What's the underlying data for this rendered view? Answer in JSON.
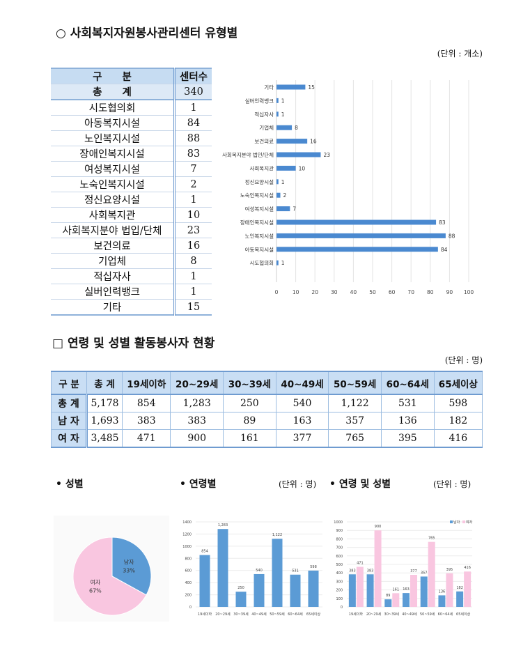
{
  "section1": {
    "title": "○ 사회복지자원봉사관리센터 유형별",
    "unit": "(단위 : 개소)",
    "table": {
      "headers": [
        "구　　분",
        "센터수"
      ],
      "total": [
        "총　　계",
        "340"
      ],
      "rows": [
        [
          "시도협의회",
          "1"
        ],
        [
          "아동복지시설",
          "84"
        ],
        [
          "노인복지시설",
          "88"
        ],
        [
          "장애인복지시설",
          "83"
        ],
        [
          "여성복지시설",
          "7"
        ],
        [
          "노숙인복지시설",
          "2"
        ],
        [
          "정신요양시설",
          "1"
        ],
        [
          "사회복지관",
          "10"
        ],
        [
          "사회복지분야 법입/단체",
          "23"
        ],
        [
          "보건의료",
          "16"
        ],
        [
          "기업체",
          "8"
        ],
        [
          "적십자사",
          "1"
        ],
        [
          "실버인력뱅크",
          "1"
        ],
        [
          "기타",
          "15"
        ]
      ]
    }
  },
  "section2": {
    "title": "□ 연령 및 성별 활동봉사자 현황",
    "unit": "(단위 : 명)",
    "table": {
      "headers": [
        "구 분",
        "총 계",
        "19세이하",
        "20~29세",
        "30~39세",
        "40~49세",
        "50~59세",
        "60~64세",
        "65세이상"
      ],
      "rows": [
        [
          "총 계",
          "5,178",
          "854",
          "1,283",
          "250",
          "540",
          "1,122",
          "531",
          "598"
        ],
        [
          "남 자",
          "1,693",
          "383",
          "383",
          "89",
          "163",
          "357",
          "136",
          "182"
        ],
        [
          "여 자",
          "3,485",
          "471",
          "900",
          "161",
          "377",
          "765",
          "395",
          "416"
        ]
      ]
    }
  },
  "bottom": {
    "gender_label": "• 성별",
    "age_label": "• 연령별",
    "age_unit": "(단위 : 명)",
    "agegender_label": "• 연령 및 성별",
    "agegender_unit": "(단위 : 명)"
  },
  "chart_data": [
    {
      "type": "bar",
      "orientation": "horizontal",
      "categories": [
        "기타",
        "실버인력뱅크",
        "적십자사",
        "기업체",
        "보건의료",
        "사회복지분야 법인/단체",
        "사회복지관",
        "정신요양시설",
        "노숙인복지시설",
        "여성복지시설",
        "장애인복지시설",
        "노인복지시설",
        "아동복지시설",
        "시도협의회"
      ],
      "values": [
        15,
        1,
        1,
        8,
        16,
        23,
        10,
        1,
        2,
        7,
        83,
        88,
        84,
        1
      ],
      "xlim": [
        0,
        100
      ],
      "ticks": [
        0,
        10,
        20,
        30,
        40,
        50,
        60,
        70,
        80,
        90,
        100
      ],
      "grid": true,
      "color": "#4a89d0"
    },
    {
      "type": "pie",
      "categories": [
        "남자",
        "여자"
      ],
      "values": [
        33,
        67
      ],
      "labels": [
        "33%",
        "67%"
      ],
      "colors": [
        "#5b9bd5",
        "#f9c6e0"
      ]
    },
    {
      "type": "bar",
      "categories": [
        "19세이하",
        "20~29세",
        "30~39세",
        "40~49세",
        "50~59세",
        "60~64세",
        "65세이상"
      ],
      "values": [
        854,
        1283,
        250,
        540,
        1122,
        531,
        598
      ],
      "data_labels": [
        "854",
        "1,283",
        "250",
        "540",
        "1,122",
        "531",
        "598"
      ],
      "ylim": [
        0,
        1400
      ],
      "ticks": [
        0,
        200,
        400,
        600,
        800,
        1000,
        1200,
        1400
      ],
      "grid": true,
      "color": "#5b9bd5"
    },
    {
      "type": "bar",
      "categories": [
        "19세이하",
        "20~29세",
        "30~39세",
        "40~49세",
        "50~59세",
        "60~64세",
        "65세이상"
      ],
      "series": [
        {
          "name": "남자",
          "values": [
            383,
            383,
            89,
            163,
            357,
            136,
            182
          ],
          "color": "#5b9bd5"
        },
        {
          "name": "여자",
          "values": [
            471,
            900,
            161,
            377,
            765,
            395,
            416
          ],
          "color": "#f9c6e0"
        }
      ],
      "ylim": [
        0,
        1000
      ],
      "ticks": [
        0,
        100,
        200,
        300,
        400,
        500,
        600,
        700,
        800,
        900,
        1000
      ],
      "grid": true,
      "legend": "top-right"
    }
  ]
}
